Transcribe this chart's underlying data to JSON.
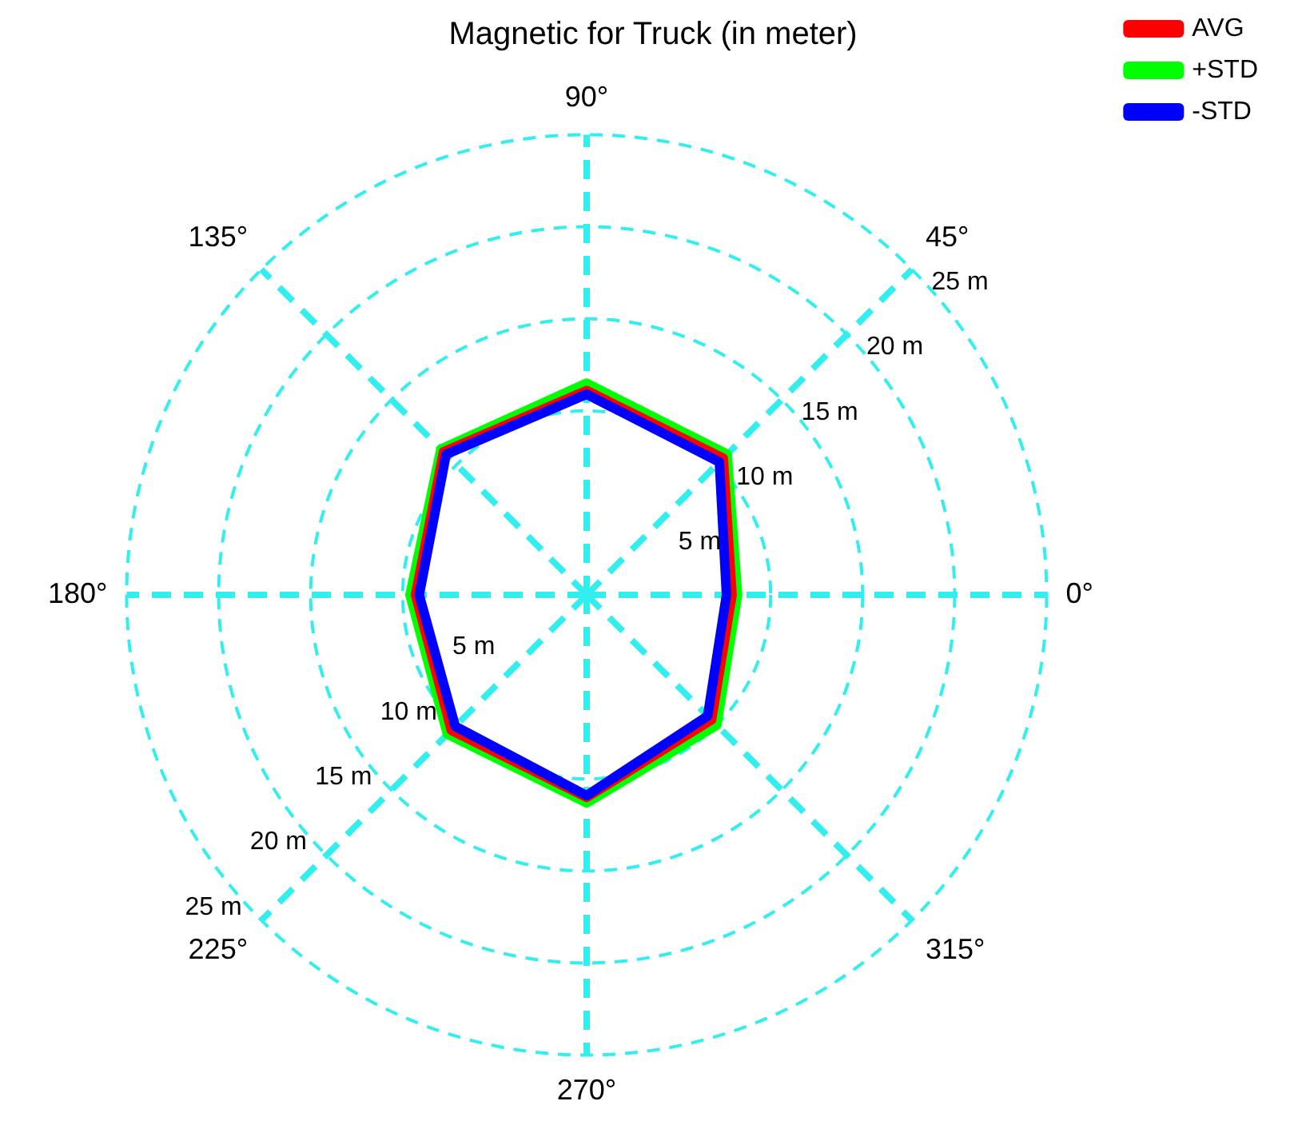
{
  "chart_data": {
    "type": "radar",
    "title": "Magnetic for Truck (in meter)",
    "categories": [
      "90°",
      "45°",
      "0°",
      "315°",
      "270°",
      "225°",
      "180°",
      "135°"
    ],
    "series": [
      {
        "name": "AVG",
        "color": "#ff0000",
        "values": [
          11.1,
          10.5,
          7.9,
          9.6,
          11.0,
          10.4,
          9.3,
          11.0
        ]
      },
      {
        "name": "+STD",
        "color": "#00ff00",
        "values": [
          11.5,
          10.8,
          8.2,
          10.0,
          11.3,
          10.7,
          9.6,
          11.2
        ]
      },
      {
        "name": "-STD",
        "color": "#0000ff",
        "values": [
          10.9,
          10.2,
          7.6,
          9.3,
          10.9,
          10.1,
          9.1,
          10.8
        ]
      }
    ],
    "ylim": [
      0,
      25
    ],
    "yticks": [
      {
        "value": 5,
        "label": "5 m"
      },
      {
        "value": 10,
        "label": "10 m"
      },
      {
        "value": 15,
        "label": "15 m"
      },
      {
        "value": 20,
        "label": "20 m"
      },
      {
        "value": 25,
        "label": "25 m"
      }
    ],
    "grid": true,
    "legend": "top right",
    "line_style": "solid",
    "marker": "none"
  }
}
